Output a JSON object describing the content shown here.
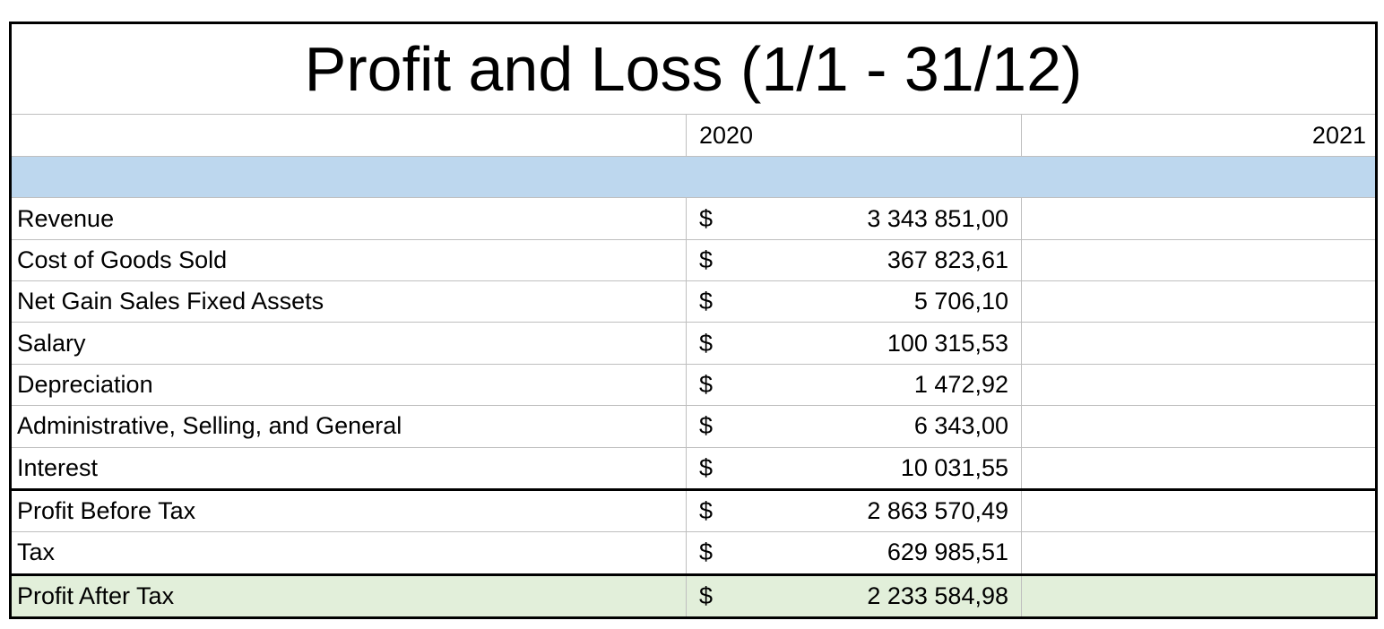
{
  "title": "Profit and Loss (1/1 - 31/12)",
  "header": {
    "col_2020": "2020",
    "col_2021": "2021"
  },
  "colors": {
    "highlight_blue": "#BDD7EE",
    "highlight_green": "#E2EFDA",
    "grid_line": "#BFBFBF",
    "border": "#000000"
  },
  "rows": [
    {
      "label": "",
      "currency": "",
      "v2020": "",
      "v2021": "",
      "style": "blue-band"
    },
    {
      "label": "Revenue",
      "currency": "$",
      "v2020": "3 343 851,00",
      "v2021": "",
      "style": "normal"
    },
    {
      "label": "Cost of Goods Sold",
      "currency": "$",
      "v2020": "367 823,61",
      "v2021": "",
      "style": "normal"
    },
    {
      "label": "Net Gain Sales Fixed Assets",
      "currency": "$",
      "v2020": "5 706,10",
      "v2021": "",
      "style": "normal"
    },
    {
      "label": "Salary",
      "currency": "$",
      "v2020": "100 315,53",
      "v2021": "",
      "style": "normal"
    },
    {
      "label": "Depreciation",
      "currency": "$",
      "v2020": "1 472,92",
      "v2021": "",
      "style": "normal"
    },
    {
      "label": "Administrative, Selling, and General",
      "currency": "$",
      "v2020": "6 343,00",
      "v2021": "",
      "style": "normal"
    },
    {
      "label": "Interest",
      "currency": "$",
      "v2020": "10 031,55",
      "v2021": "",
      "style": "normal"
    },
    {
      "label": "Profit Before Tax",
      "currency": "$",
      "v2020": "2 863 570,49",
      "v2021": "",
      "style": "subtotal"
    },
    {
      "label": "Tax",
      "currency": "$",
      "v2020": "629 985,51",
      "v2021": "",
      "style": "normal"
    },
    {
      "label": "Profit After Tax",
      "currency": "$",
      "v2020": "2 233 584,98",
      "v2021": "",
      "style": "total"
    }
  ]
}
